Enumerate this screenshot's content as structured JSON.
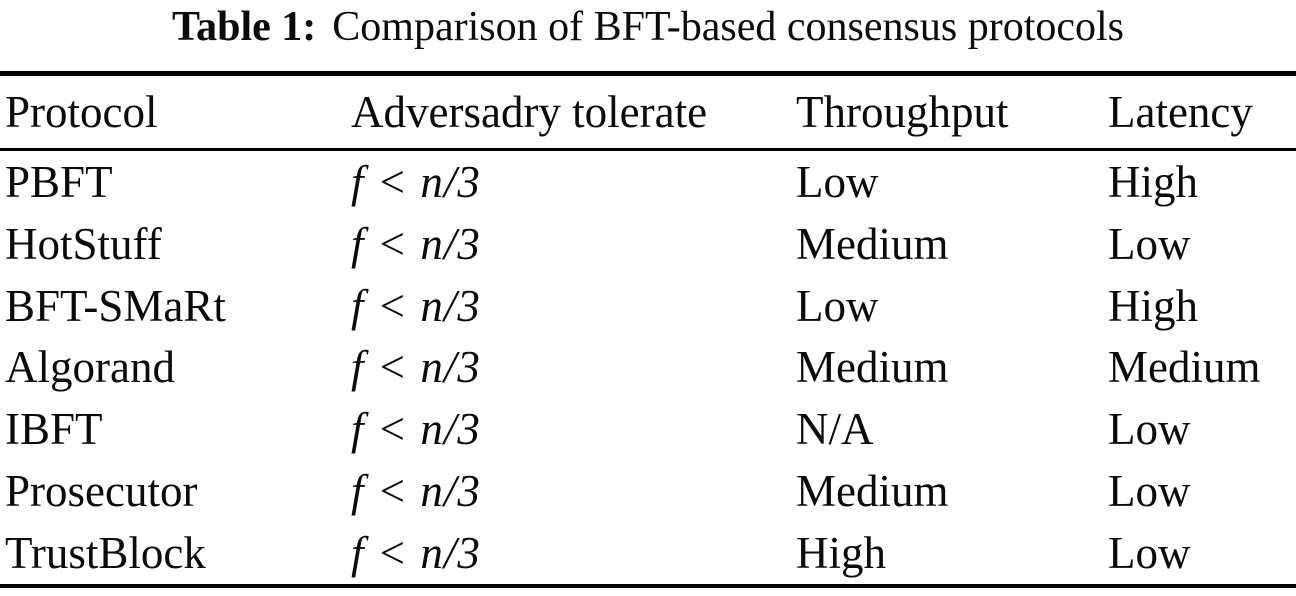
{
  "caption": {
    "label": "Table 1:",
    "text": "Comparison of BFT-based consensus protocols"
  },
  "table": {
    "columns": [
      "Protocol",
      "Adversadry tolerate",
      "Throughput",
      "Latency"
    ],
    "rows": [
      {
        "protocol": "PBFT",
        "adversary": "f < n/3",
        "throughput": "Low",
        "latency": "High"
      },
      {
        "protocol": "HotStuff",
        "adversary": "f < n/3",
        "throughput": "Medium",
        "latency": "Low"
      },
      {
        "protocol": "BFT-SMaRt",
        "adversary": "f < n/3",
        "throughput": "Low",
        "latency": "High"
      },
      {
        "protocol": "Algorand",
        "adversary": "f < n/3",
        "throughput": "Medium",
        "latency": "Medium"
      },
      {
        "protocol": "IBFT",
        "adversary": "f < n/3",
        "throughput": "N/A",
        "latency": "Low"
      },
      {
        "protocol": "Prosecutor",
        "adversary": "f < n/3",
        "throughput": "Medium",
        "latency": "Low"
      },
      {
        "protocol": "TrustBlock",
        "adversary": "f < n/3",
        "throughput": "High",
        "latency": "Low"
      }
    ]
  },
  "colors": {
    "background": "#ffffff",
    "text": "#0b0b0b",
    "rule": "#000000"
  }
}
